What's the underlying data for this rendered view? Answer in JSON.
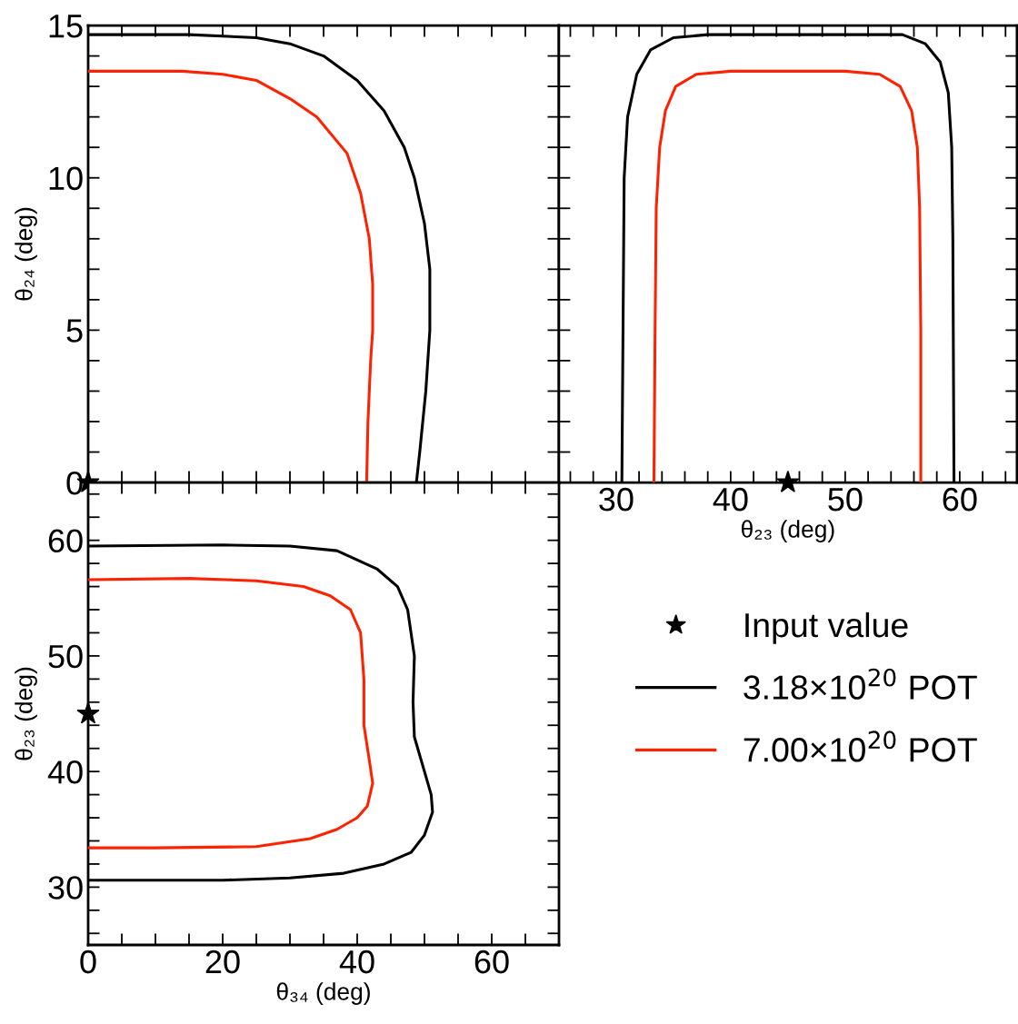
{
  "chart_data": [
    {
      "type": "line",
      "ylabel": "θ₂₄ (deg)",
      "xlim": [
        0,
        70
      ],
      "ylim": [
        0,
        15
      ],
      "tick_labels": "y",
      "legend": false,
      "grid": false,
      "xticks": [
        0,
        {
          "value": 5,
          "label": null
        },
        {
          "value": 10,
          "label": null
        },
        {
          "value": 15,
          "label": null
        },
        20,
        {
          "value": 25,
          "label": null
        },
        {
          "value": 30,
          "label": null
        },
        {
          "value": 35,
          "label": null
        },
        40,
        {
          "value": 45,
          "label": null
        },
        {
          "value": 50,
          "label": null
        },
        {
          "value": 55,
          "label": null
        },
        60,
        {
          "value": 65,
          "label": null
        }
      ],
      "yticks": [
        0,
        {
          "value": 1,
          "label": null
        },
        {
          "value": 2,
          "label": null
        },
        {
          "value": 3,
          "label": null
        },
        {
          "value": 4,
          "label": null
        },
        5,
        {
          "value": 6,
          "label": null
        },
        {
          "value": 7,
          "label": null
        },
        {
          "value": 8,
          "label": null
        },
        {
          "value": 9,
          "label": null
        },
        10,
        {
          "value": 11,
          "label": null
        },
        {
          "value": 12,
          "label": null
        },
        {
          "value": 13,
          "label": null
        },
        {
          "value": 14,
          "label": null
        },
        15
      ],
      "series": [
        {
          "color": "#000000",
          "x": [
            0,
            15,
            25,
            30,
            35,
            40,
            44,
            47,
            48.5,
            50,
            50.8,
            50.8,
            50.2,
            49.3,
            48.8
          ],
          "values": [
            14.7,
            14.7,
            14.6,
            14.4,
            14.0,
            13.2,
            12.2,
            11.0,
            10,
            8.5,
            7,
            5,
            3,
            1,
            0
          ]
        },
        {
          "color": "#ff2200",
          "x": [
            0,
            14,
            20,
            25,
            30,
            34,
            38.5,
            40.5,
            41.8,
            42.3,
            42.3,
            42,
            41.6,
            41.4
          ],
          "values": [
            13.5,
            13.5,
            13.4,
            13.2,
            12.6,
            12.0,
            10.8,
            9.5,
            8,
            6.5,
            5,
            4,
            2,
            0
          ]
        },
        {
          "type": "scatter",
          "marker": "star",
          "color": "#000000",
          "x": [
            0
          ],
          "values": [
            0
          ]
        }
      ]
    },
    {
      "type": "line",
      "xlabel": "θ₂₃ (deg)",
      "xlim": [
        25,
        65
      ],
      "ylim": [
        0,
        15
      ],
      "tick_labels": "x",
      "legend": false,
      "grid": false,
      "xticks": [
        {
          "value": 26,
          "label": null
        },
        {
          "value": 28,
          "label": null
        },
        30,
        {
          "value": 32,
          "label": null
        },
        {
          "value": 34,
          "label": null
        },
        {
          "value": 36,
          "label": null
        },
        {
          "value": 38,
          "label": null
        },
        40,
        {
          "value": 42,
          "label": null
        },
        {
          "value": 44,
          "label": null
        },
        {
          "value": 46,
          "label": null
        },
        {
          "value": 48,
          "label": null
        },
        50,
        {
          "value": 52,
          "label": null
        },
        {
          "value": 54,
          "label": null
        },
        {
          "value": 56,
          "label": null
        },
        {
          "value": 58,
          "label": null
        },
        60,
        {
          "value": 62,
          "label": null
        },
        {
          "value": 64,
          "label": null
        }
      ],
      "yticks": [
        0,
        {
          "value": 1,
          "label": null
        },
        {
          "value": 2,
          "label": null
        },
        {
          "value": 3,
          "label": null
        },
        {
          "value": 4,
          "label": null
        },
        5,
        {
          "value": 6,
          "label": null
        },
        {
          "value": 7,
          "label": null
        },
        {
          "value": 8,
          "label": null
        },
        {
          "value": 9,
          "label": null
        },
        10,
        {
          "value": 11,
          "label": null
        },
        {
          "value": 12,
          "label": null
        },
        {
          "value": 13,
          "label": null
        },
        {
          "value": 14,
          "label": null
        },
        15
      ],
      "series": [
        {
          "color": "#000000",
          "x": [
            30.5,
            30.6,
            30.7,
            31.0,
            31.8,
            33,
            35,
            38,
            50,
            55,
            57,
            58.3,
            59.0,
            59.3,
            59.4,
            59.5
          ],
          "values": [
            0,
            5,
            10,
            12,
            13.4,
            14.2,
            14.6,
            14.7,
            14.7,
            14.7,
            14.4,
            13.8,
            12.8,
            11,
            8,
            0
          ]
        },
        {
          "color": "#ff2200",
          "x": [
            33.3,
            33.4,
            33.5,
            33.8,
            34.3,
            35.2,
            37,
            40,
            50,
            53,
            54.8,
            55.8,
            56.3,
            56.5,
            56.6,
            56.6
          ],
          "values": [
            0,
            5,
            9,
            11,
            12.2,
            13.0,
            13.4,
            13.5,
            13.5,
            13.4,
            13.0,
            12.2,
            11,
            9,
            5,
            0
          ]
        },
        {
          "type": "scatter",
          "marker": "star",
          "color": "#000000",
          "x": [
            45
          ],
          "values": [
            0
          ]
        }
      ]
    },
    {
      "type": "line",
      "xlabel": "θ₃₄ (deg)",
      "ylabel": "θ₂₃ (deg)",
      "xlim": [
        0,
        70
      ],
      "ylim": [
        25,
        65
      ],
      "legend": "right",
      "grid": false,
      "xticks": [
        0,
        {
          "value": 5,
          "label": null
        },
        {
          "value": 10,
          "label": null
        },
        {
          "value": 15,
          "label": null
        },
        20,
        {
          "value": 25,
          "label": null
        },
        {
          "value": 30,
          "label": null
        },
        {
          "value": 35,
          "label": null
        },
        40,
        {
          "value": 45,
          "label": null
        },
        {
          "value": 50,
          "label": null
        },
        {
          "value": 55,
          "label": null
        },
        60,
        {
          "value": 65,
          "label": null
        }
      ],
      "yticks": [
        {
          "value": 26,
          "label": null
        },
        {
          "value": 28,
          "label": null
        },
        30,
        {
          "value": 32,
          "label": null
        },
        {
          "value": 34,
          "label": null
        },
        {
          "value": 36,
          "label": null
        },
        {
          "value": 38,
          "label": null
        },
        40,
        {
          "value": 42,
          "label": null
        },
        {
          "value": 44,
          "label": null
        },
        {
          "value": 46,
          "label": null
        },
        {
          "value": 48,
          "label": null
        },
        50,
        {
          "value": 52,
          "label": null
        },
        {
          "value": 54,
          "label": null
        },
        {
          "value": 56,
          "label": null
        },
        {
          "value": 58,
          "label": null
        },
        60,
        {
          "value": 62,
          "label": null
        },
        {
          "value": 64,
          "label": null
        }
      ],
      "series": [
        {
          "type": "scatter",
          "name": "Input value",
          "marker": "star",
          "color": "#000000",
          "x": [
            0
          ],
          "values": [
            45
          ]
        },
        {
          "name": "3.18×10$^{20}$ POT",
          "color": "#000000",
          "x": [
            0,
            20,
            30,
            37,
            43,
            46,
            47.5,
            48.5,
            48.3,
            48.5,
            50,
            51,
            51.2,
            50,
            48,
            44,
            38,
            30,
            20,
            0
          ],
          "values": [
            59.5,
            59.6,
            59.5,
            59.1,
            57.5,
            56,
            54,
            50,
            46,
            43,
            40,
            38,
            36.5,
            34.5,
            33,
            32,
            31.2,
            30.8,
            30.6,
            30.6
          ]
        },
        {
          "name": "7.00×10$^{20}$ POT",
          "color": "#ff2200",
          "x": [
            0,
            15,
            25,
            32,
            36,
            39,
            40.5,
            41,
            41,
            41.8,
            42.3,
            41.5,
            40,
            37,
            33,
            25,
            10,
            0
          ],
          "values": [
            56.6,
            56.7,
            56.5,
            56.0,
            55.2,
            54,
            52,
            48,
            44,
            41,
            39,
            37,
            36,
            35,
            34.2,
            33.5,
            33.4,
            33.4
          ]
        }
      ]
    }
  ]
}
